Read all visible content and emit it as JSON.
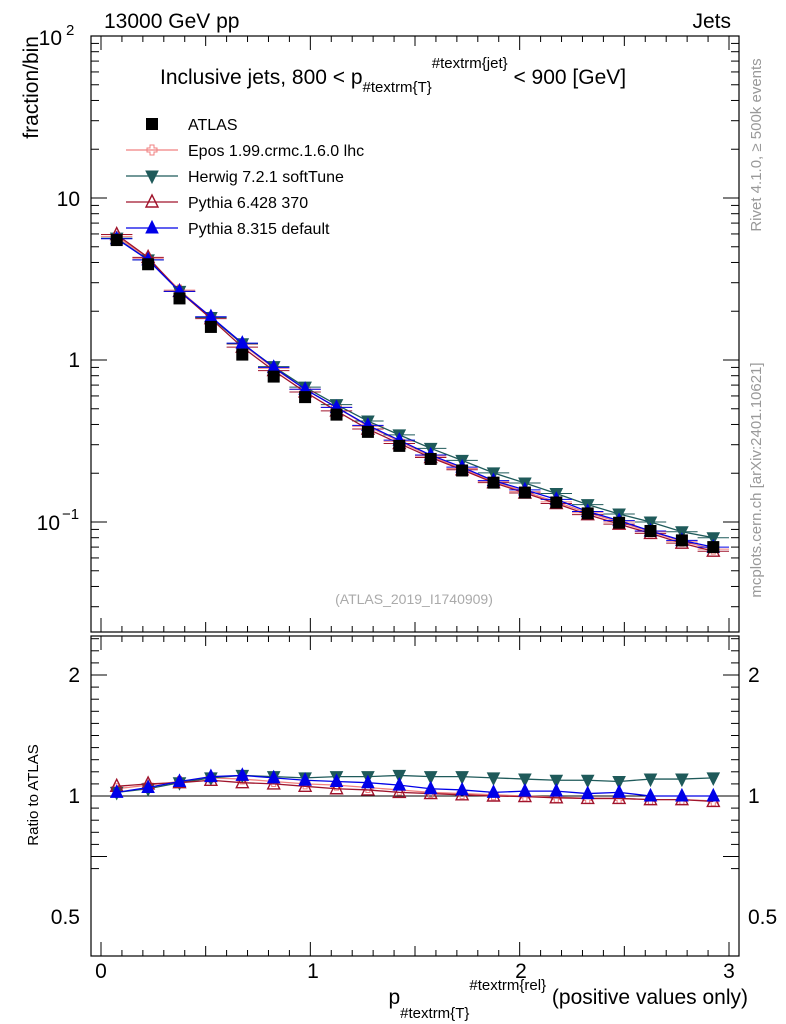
{
  "header": {
    "left": "13000 GeV pp",
    "right": "Jets"
  },
  "side": {
    "rivet": "Rivet 4.1.0, ≥ 500k events",
    "mcplots": "mcplots.cern.ch [arXiv:2401.10621]"
  },
  "chart_data": [
    {
      "type": "line",
      "title_main": "Inclusive jets, 800 < p",
      "title_sub": "#textrm{T}",
      "title_sup": "#textrm{jet}",
      "title_tail": " < 900 [GeV]",
      "ylabel": "fraction/bin",
      "yscale": "log",
      "ylim": [
        0.025,
        100
      ],
      "xlim": [
        -0.05,
        3.0
      ],
      "ytick_labels": {
        "major_100": "10",
        "major_100_exp": "2",
        "major_10": "10",
        "major_1": "1",
        "major_01": "10",
        "major_01_exp": "−1"
      },
      "watermark": "(ATLAS_2019_I1740909)",
      "x": [
        0.075,
        0.225,
        0.375,
        0.525,
        0.675,
        0.825,
        0.975,
        1.125,
        1.275,
        1.425,
        1.575,
        1.725,
        1.875,
        2.025,
        2.175,
        2.325,
        2.475,
        2.625,
        2.775,
        2.925
      ],
      "series": [
        {
          "name": "ATLAS",
          "color": "#000000",
          "marker": "square",
          "values": [
            5.5,
            3.9,
            2.4,
            1.6,
            1.08,
            0.79,
            0.59,
            0.46,
            0.36,
            0.295,
            0.245,
            0.208,
            0.175,
            0.152,
            0.132,
            0.113,
            0.099,
            0.088,
            0.077,
            0.07
          ]
        },
        {
          "name": "Epos 1.99.crmc.1.6.0 lhc",
          "color": "#f08080",
          "marker": "cross-open",
          "values": [
            5.8,
            4.25,
            2.7,
            1.84,
            1.25,
            0.89,
            0.66,
            0.51,
            0.39,
            0.315,
            0.255,
            0.214,
            0.178,
            0.154,
            0.133,
            0.114,
            0.1,
            0.087,
            0.076,
            0.068
          ]
        },
        {
          "name": "Herwig 7.2.1 softTune",
          "color": "#1f5a5a",
          "marker": "triangle-down",
          "values": [
            5.65,
            4.15,
            2.65,
            1.83,
            1.26,
            0.91,
            0.68,
            0.53,
            0.42,
            0.345,
            0.285,
            0.24,
            0.201,
            0.174,
            0.15,
            0.128,
            0.112,
            0.1,
            0.087,
            0.08
          ]
        },
        {
          "name": "Pythia 6.428 370",
          "color": "#a0142c",
          "marker": "triangle-up-open",
          "values": [
            5.95,
            4.3,
            2.65,
            1.8,
            1.2,
            0.86,
            0.635,
            0.485,
            0.375,
            0.305,
            0.25,
            0.21,
            0.175,
            0.151,
            0.13,
            0.111,
            0.097,
            0.085,
            0.074,
            0.066
          ]
        },
        {
          "name": "Pythia 8.315 default",
          "color": "#0000e8",
          "marker": "triangle-up",
          "values": [
            5.6,
            4.15,
            2.65,
            1.85,
            1.27,
            0.9,
            0.66,
            0.51,
            0.395,
            0.32,
            0.259,
            0.218,
            0.18,
            0.158,
            0.138,
            0.116,
            0.102,
            0.088,
            0.077,
            0.07
          ]
        }
      ]
    },
    {
      "type": "line",
      "ylabel": "Ratio to ATLAS",
      "ylim": [
        0.35,
        2.3
      ],
      "xlim": [
        -0.05,
        3.0
      ],
      "xlabel_main": "p",
      "xlabel_sub": "#textrm{T}",
      "xlabel_sup": "#textrm{rel}",
      "xlabel_tail": " (positive values only)",
      "ytick_labels": [
        "0.5",
        "1",
        "2"
      ],
      "xtick_labels": [
        "0",
        "1",
        "2",
        "3"
      ],
      "x": [
        0.075,
        0.225,
        0.375,
        0.525,
        0.675,
        0.825,
        0.975,
        1.125,
        1.275,
        1.425,
        1.575,
        1.725,
        1.875,
        2.025,
        2.175,
        2.325,
        2.475,
        2.625,
        2.775,
        2.925
      ],
      "series": [
        {
          "name": "Epos 1.99.crmc.1.6.0 lhc",
          "color": "#f08080",
          "marker": "cross-open",
          "values": [
            1.06,
            1.09,
            1.12,
            1.15,
            1.14,
            1.12,
            1.1,
            1.09,
            1.07,
            1.05,
            1.03,
            1.02,
            1.01,
            1.0,
            0.99,
            0.98,
            0.98,
            0.97,
            0.97,
            0.96
          ]
        },
        {
          "name": "Herwig 7.2.1 softTune",
          "color": "#1f5a5a",
          "marker": "triangle-down",
          "values": [
            1.03,
            1.06,
            1.11,
            1.15,
            1.17,
            1.16,
            1.15,
            1.16,
            1.16,
            1.17,
            1.16,
            1.16,
            1.15,
            1.14,
            1.13,
            1.13,
            1.12,
            1.14,
            1.14,
            1.15
          ]
        },
        {
          "name": "Pythia 6.428 370",
          "color": "#a0142c",
          "marker": "triangle-up-open",
          "values": [
            1.08,
            1.1,
            1.11,
            1.13,
            1.11,
            1.1,
            1.08,
            1.06,
            1.05,
            1.03,
            1.02,
            1.01,
            1.0,
            0.995,
            0.985,
            0.98,
            0.98,
            0.97,
            0.97,
            0.955
          ]
        },
        {
          "name": "Pythia 8.315 default",
          "color": "#0000e8",
          "marker": "triangle-up",
          "values": [
            1.03,
            1.07,
            1.12,
            1.16,
            1.17,
            1.15,
            1.13,
            1.12,
            1.11,
            1.09,
            1.06,
            1.05,
            1.03,
            1.04,
            1.04,
            1.02,
            1.03,
            1.0,
            1.0,
            1.0
          ]
        }
      ]
    }
  ]
}
